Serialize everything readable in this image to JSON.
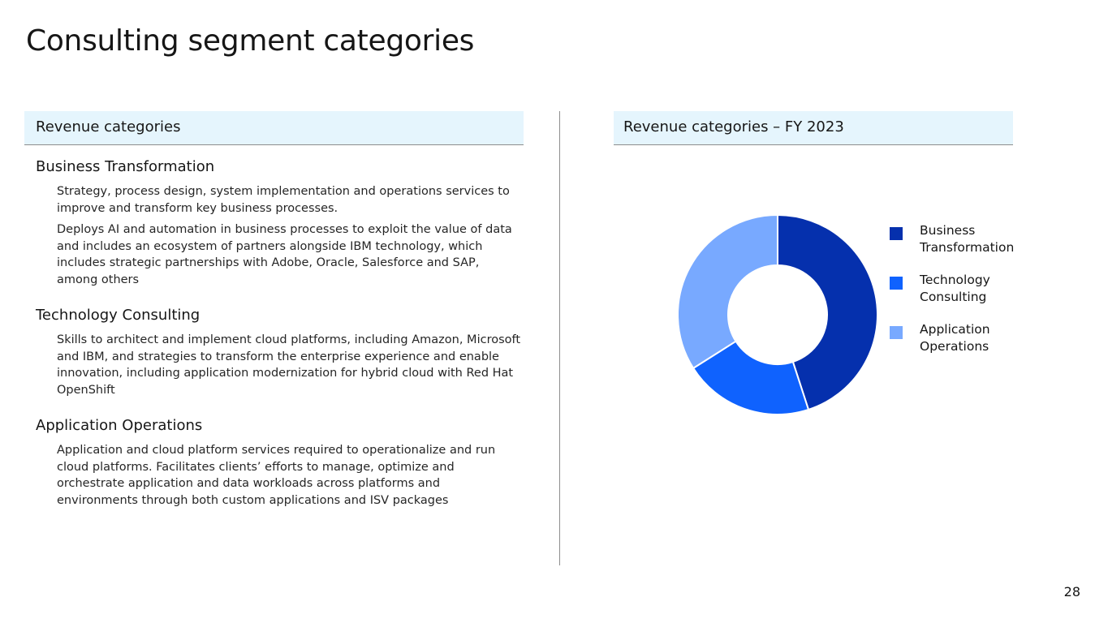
{
  "slide": {
    "title": "Consulting segment categories",
    "page_number": "28"
  },
  "left_panel": {
    "header": "Revenue categories",
    "categories": [
      {
        "title": "Business Transformation",
        "descriptions": [
          "Strategy, process design, system implementation and operations services to improve and transform key business processes.",
          "Deploys AI and automation in business processes to exploit the value of data and includes an ecosystem of partners alongside IBM technology, which includes strategic partnerships with Adobe, Oracle, Salesforce and SAP, among others"
        ]
      },
      {
        "title": "Technology Consulting",
        "descriptions": [
          "Skills to architect and implement cloud platforms, including Amazon, Microsoft and IBM, and strategies to transform the enterprise experience and enable innovation, including application modernization for hybrid cloud with Red Hat OpenShift"
        ]
      },
      {
        "title": "Application Operations",
        "descriptions": [
          "Application and cloud platform services required to operationalize and run cloud platforms. Facilitates clients’ efforts to manage, optimize and orchestrate application and data workloads across platforms and environments through both custom applications and ISV packages"
        ]
      }
    ]
  },
  "right_panel": {
    "header": "Revenue categories – FY 2023"
  },
  "chart_data": {
    "type": "pie",
    "variant": "donut",
    "title": "",
    "legend_position": "right",
    "slices": [
      {
        "label": "Business Transformation",
        "value": 45,
        "color": "#0530ad"
      },
      {
        "label": "Technology Consulting",
        "value": 21,
        "color": "#0f62fe"
      },
      {
        "label": "Application Operations",
        "value": 34,
        "color": "#78a9ff"
      }
    ]
  }
}
